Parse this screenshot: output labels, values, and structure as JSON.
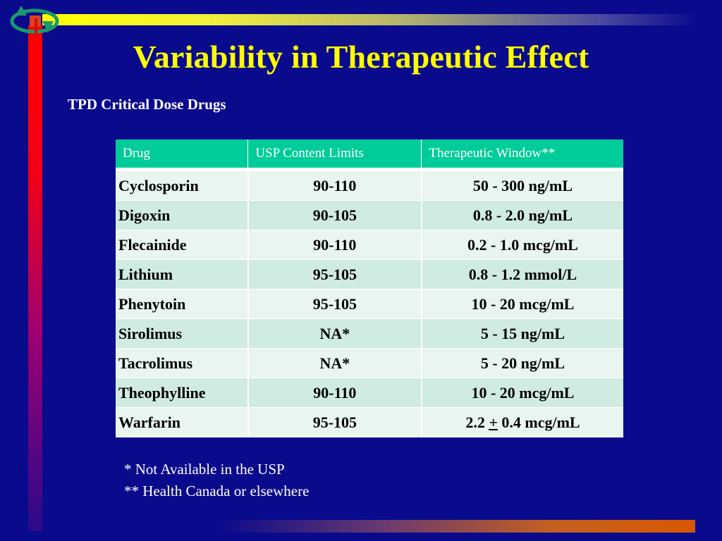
{
  "slide": {
    "title": "Variability in Therapeutic Effect",
    "subtitle": "TPD Critical Dose Drugs"
  },
  "table": {
    "headers": [
      "Drug",
      "USP Content Limits",
      "Therapeutic Window**"
    ],
    "rows": [
      [
        "Cyclosporin",
        "90-110",
        "50 - 300 ng/mL"
      ],
      [
        "Digoxin",
        "90-105",
        "0.8 - 2.0 ng/mL"
      ],
      [
        "Flecainide",
        "90-110",
        "0.2 - 1.0 mcg/mL"
      ],
      [
        "Lithium",
        "95-105",
        "0.8 - 1.2 mmol/L"
      ],
      [
        "Phenytoin",
        "95-105",
        "10 - 20 mcg/mL"
      ],
      [
        "Sirolimus",
        "NA*",
        "5 - 15 ng/mL"
      ],
      [
        "Tacrolimus",
        "NA*",
        "5 - 20 ng/mL"
      ],
      [
        "Theophylline",
        "90-110",
        "10 - 20 mcg/mL"
      ],
      [
        "Warfarin",
        "95-105",
        "2.2 + 0.4 mcg/mL"
      ]
    ],
    "warfarin_window": {
      "before": "2.2 ",
      "symbol": "+",
      "after": " 0.4 mcg/mL"
    }
  },
  "footnotes": [
    "* Not Available in the USP",
    "** Health Canada or elsewhere"
  ],
  "colors": {
    "background": "#0a0a8c",
    "title": "#ffff00",
    "header": "#00cc99",
    "row_light": "#e8f5f0",
    "row_dark": "#d0ebe2"
  },
  "icons": [
    "cycle-arrows-icon"
  ]
}
